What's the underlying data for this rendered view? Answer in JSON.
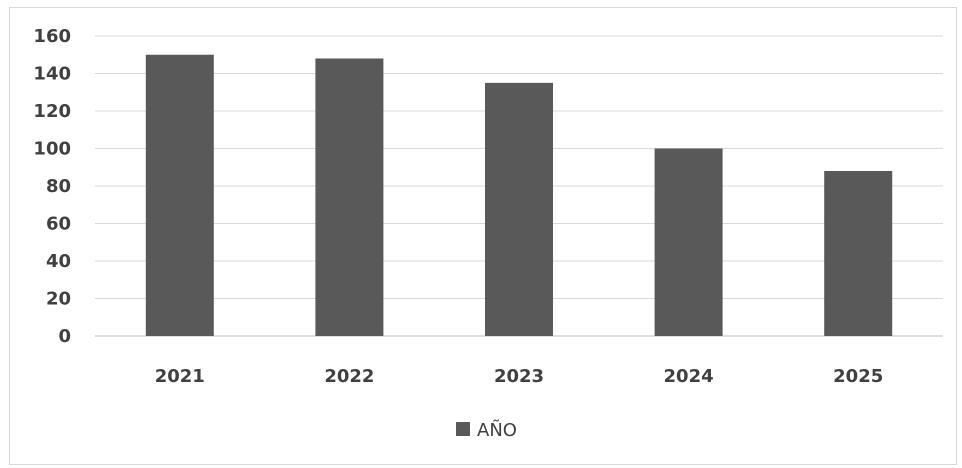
{
  "chart_data": {
    "type": "bar",
    "categories": [
      "2021",
      "2022",
      "2023",
      "2024",
      "2025"
    ],
    "series": [
      {
        "name": "AÑO",
        "values": [
          150,
          148,
          135,
          100,
          88
        ],
        "color": "#595959"
      }
    ],
    "title": "",
    "xlabel": "",
    "ylabel": "",
    "ylim": [
      0,
      160
    ],
    "yticks": [
      "0",
      "20",
      "40",
      "60",
      "80",
      "100",
      "120",
      "140",
      "160"
    ],
    "grid": true,
    "legend": "bottom-center"
  }
}
